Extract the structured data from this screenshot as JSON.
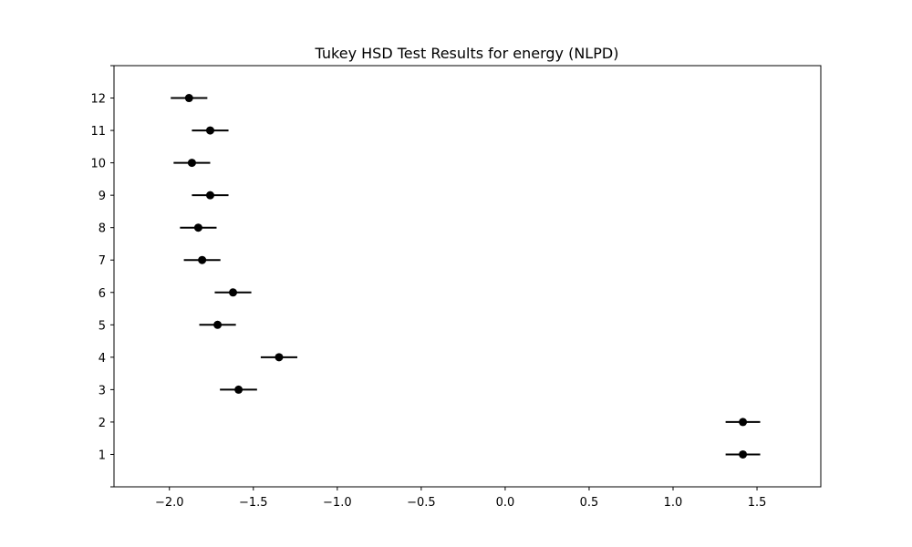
{
  "chart_data": {
    "type": "scatter",
    "title": "Tukey HSD Test Results for energy (NLPD)",
    "xlabel": "",
    "ylabel": "",
    "xlim": [
      -2.33,
      1.88
    ],
    "ylim": [
      0,
      13
    ],
    "grid": false,
    "x_ticks": [
      -2.0,
      -1.5,
      -1.0,
      -0.5,
      0.0,
      0.5,
      1.0,
      1.5
    ],
    "x_tick_labels": [
      "−2.0",
      "−1.5",
      "−1.0",
      "−0.5",
      "0.0",
      "0.5",
      "1.0",
      "1.5"
    ],
    "y_ticks": [
      1,
      2,
      3,
      4,
      5,
      6,
      7,
      8,
      9,
      10,
      11,
      12
    ],
    "y_tick_labels": [
      "1",
      "2",
      "3",
      "4",
      "5",
      "6",
      "7",
      "8",
      "9",
      "10",
      "11",
      "12"
    ],
    "groups": [
      {
        "y": 1,
        "mean": 1.416,
        "lower": 1.313,
        "upper": 1.519
      },
      {
        "y": 2,
        "mean": 1.416,
        "lower": 1.313,
        "upper": 1.519
      },
      {
        "y": 3,
        "mean": -1.588,
        "lower": -1.699,
        "upper": -1.478
      },
      {
        "y": 4,
        "mean": -1.347,
        "lower": -1.456,
        "upper": -1.238
      },
      {
        "y": 5,
        "mean": -1.713,
        "lower": -1.822,
        "upper": -1.604
      },
      {
        "y": 6,
        "mean": -1.621,
        "lower": -1.73,
        "upper": -1.512
      },
      {
        "y": 7,
        "mean": -1.805,
        "lower": -1.914,
        "upper": -1.696
      },
      {
        "y": 8,
        "mean": -1.828,
        "lower": -1.937,
        "upper": -1.719
      },
      {
        "y": 9,
        "mean": -1.757,
        "lower": -1.866,
        "upper": -1.648
      },
      {
        "y": 10,
        "mean": -1.866,
        "lower": -1.975,
        "upper": -1.757
      },
      {
        "y": 11,
        "mean": -1.757,
        "lower": -1.866,
        "upper": -1.648
      },
      {
        "y": 12,
        "mean": -1.883,
        "lower": -1.992,
        "upper": -1.774
      }
    ],
    "colors": {
      "marker": "#000000",
      "errorbar": "#000000",
      "axes": "#000000"
    }
  }
}
